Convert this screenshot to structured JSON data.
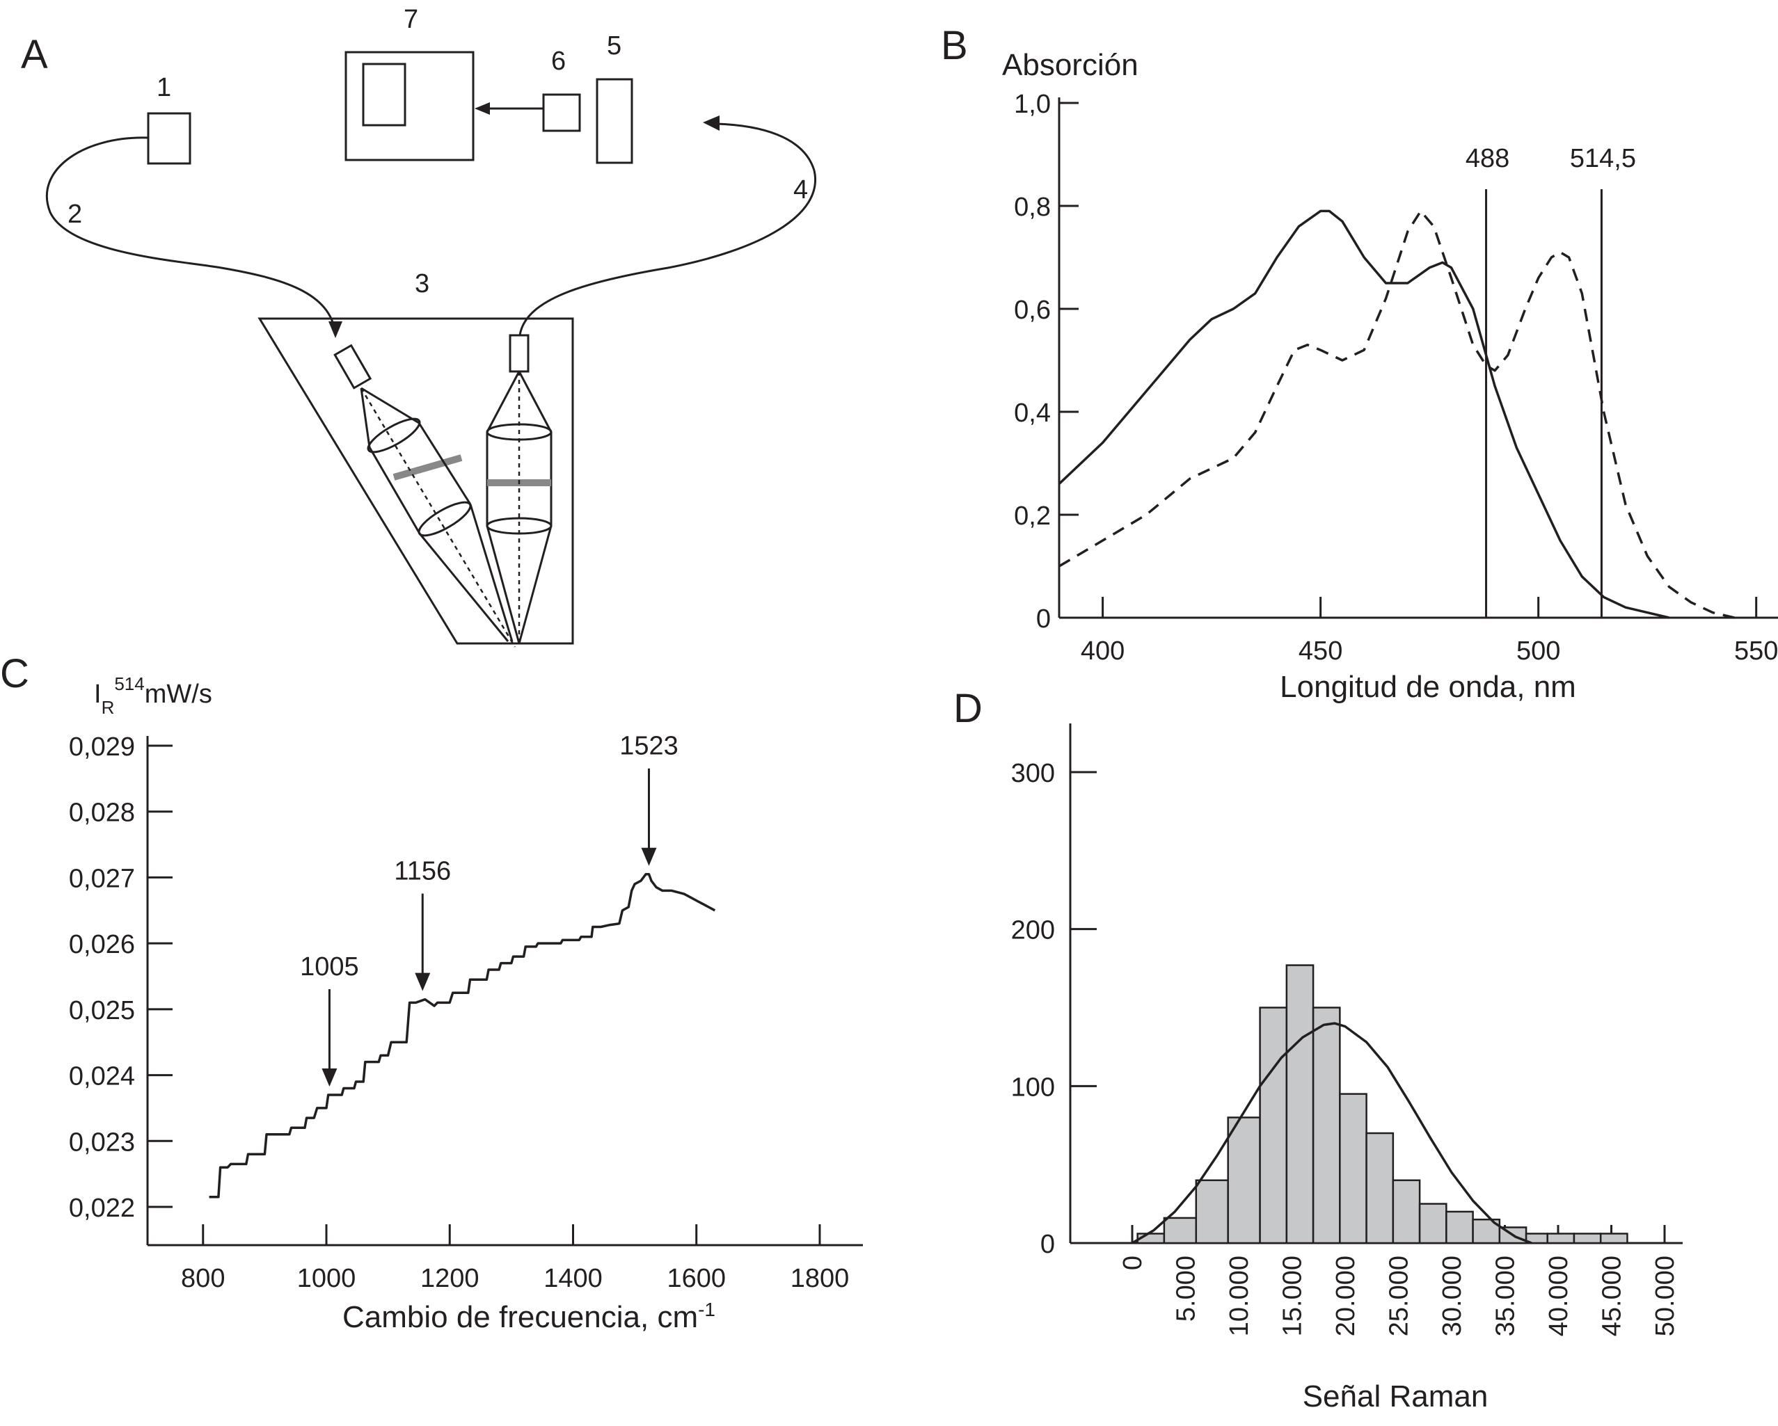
{
  "panels": {
    "A": {
      "letter": "A",
      "component_labels": [
        "1",
        "2",
        "3",
        "4",
        "5",
        "6",
        "7"
      ]
    },
    "B": {
      "letter": "B"
    },
    "C": {
      "letter": "C"
    },
    "D": {
      "letter": "D"
    }
  },
  "chart_data": [
    {
      "panel": "B",
      "type": "line",
      "ylabel": "Absorción",
      "xlabel": "Longitud de onda, nm",
      "xlim": [
        390,
        555
      ],
      "ylim": [
        0,
        1.0
      ],
      "x_ticks": [
        400,
        450,
        500,
        550
      ],
      "y_ticks": [
        0,
        0.2,
        0.4,
        0.6,
        0.8,
        1.0
      ],
      "x_tick_labels": [
        "400",
        "450",
        "500",
        "550"
      ],
      "y_tick_labels": [
        "0",
        "0,2",
        "0,4",
        "0,6",
        "0,8",
        "1,0"
      ],
      "grid": false,
      "series": [
        {
          "style": "solid",
          "x": [
            390,
            400,
            410,
            420,
            425,
            430,
            435,
            440,
            445,
            450,
            452,
            455,
            460,
            465,
            470,
            475,
            478,
            480,
            485,
            490,
            495,
            500,
            505,
            510,
            515,
            520,
            525,
            530
          ],
          "y": [
            0.26,
            0.34,
            0.44,
            0.54,
            0.58,
            0.6,
            0.63,
            0.7,
            0.76,
            0.79,
            0.79,
            0.77,
            0.7,
            0.65,
            0.65,
            0.68,
            0.69,
            0.68,
            0.6,
            0.45,
            0.33,
            0.24,
            0.15,
            0.08,
            0.04,
            0.02,
            0.01,
            0.0
          ]
        },
        {
          "style": "dashed",
          "x": [
            390,
            400,
            410,
            420,
            430,
            435,
            440,
            444,
            447,
            450,
            455,
            460,
            465,
            470,
            473,
            476,
            480,
            485,
            488,
            490,
            493,
            497,
            500,
            503,
            505,
            507,
            510,
            515,
            520,
            525,
            530,
            535,
            540,
            545
          ],
          "y": [
            0.1,
            0.15,
            0.2,
            0.27,
            0.31,
            0.36,
            0.45,
            0.52,
            0.53,
            0.52,
            0.5,
            0.52,
            0.62,
            0.75,
            0.79,
            0.76,
            0.66,
            0.53,
            0.49,
            0.48,
            0.51,
            0.6,
            0.66,
            0.7,
            0.71,
            0.7,
            0.63,
            0.4,
            0.22,
            0.12,
            0.06,
            0.03,
            0.01,
            0.0
          ]
        }
      ],
      "vertical_lines": [
        {
          "x": 488,
          "label": "488"
        },
        {
          "x": 514.5,
          "label": "514,5"
        }
      ]
    },
    {
      "panel": "C",
      "type": "line",
      "ylabel_main": "I",
      "ylabel_sub": "R",
      "ylabel_sup": "514",
      "ylabel_unit": "mW/s",
      "xlabel_main": "Cambio de frecuencia, cm",
      "xlabel_sup": "-1",
      "xlim": [
        710,
        1870
      ],
      "ylim": [
        0.0216,
        0.0292
      ],
      "x_ticks": [
        800,
        1000,
        1200,
        1400,
        1600,
        1800
      ],
      "y_ticks": [
        0.022,
        0.023,
        0.024,
        0.025,
        0.026,
        0.027,
        0.028,
        0.029
      ],
      "x_tick_labels": [
        "800",
        "1000",
        "1200",
        "1400",
        "1600",
        "1800"
      ],
      "y_tick_labels": [
        "0,022",
        "0,023",
        "0,024",
        "0,025",
        "0,026",
        "0,027",
        "0,028",
        "0,029"
      ],
      "grid": false,
      "series": [
        {
          "style": "solid",
          "x": [
            810,
            825,
            828,
            840,
            845,
            870,
            873,
            900,
            903,
            940,
            943,
            965,
            968,
            980,
            985,
            1000,
            1003,
            1025,
            1028,
            1045,
            1048,
            1060,
            1063,
            1085,
            1088,
            1100,
            1105,
            1130,
            1135,
            1145,
            1160,
            1175,
            1180,
            1200,
            1205,
            1210,
            1230,
            1233,
            1260,
            1263,
            1280,
            1283,
            1300,
            1303,
            1320,
            1323,
            1340,
            1343,
            1380,
            1383,
            1410,
            1413,
            1430,
            1432,
            1445,
            1460,
            1475,
            1480,
            1490,
            1495,
            1500,
            1510,
            1518,
            1523,
            1527,
            1535,
            1545,
            1560,
            1580,
            1590,
            1600,
            1610,
            1620,
            1630
          ],
          "y": [
            0.02215,
            0.02215,
            0.0226,
            0.0226,
            0.02265,
            0.02265,
            0.0228,
            0.0228,
            0.0231,
            0.0231,
            0.0232,
            0.0232,
            0.02335,
            0.02335,
            0.0235,
            0.0235,
            0.0237,
            0.0237,
            0.0238,
            0.0238,
            0.0239,
            0.0239,
            0.0242,
            0.0242,
            0.0243,
            0.0243,
            0.0245,
            0.0245,
            0.0251,
            0.0251,
            0.02515,
            0.02505,
            0.0251,
            0.0251,
            0.02525,
            0.02525,
            0.02525,
            0.02545,
            0.02545,
            0.0256,
            0.0256,
            0.0257,
            0.0257,
            0.0258,
            0.0258,
            0.02595,
            0.02595,
            0.026,
            0.026,
            0.02605,
            0.02605,
            0.0261,
            0.0261,
            0.02625,
            0.02625,
            0.02628,
            0.0263,
            0.0265,
            0.02655,
            0.0268,
            0.0269,
            0.02695,
            0.02705,
            0.02705,
            0.02695,
            0.02685,
            0.0268,
            0.0268,
            0.02675,
            0.0267,
            0.02665,
            0.0266,
            0.02655,
            0.0265
          ]
        }
      ],
      "annotations": [
        {
          "x": 1005,
          "label": "1005"
        },
        {
          "x": 1156,
          "label": "1156"
        },
        {
          "x": 1523,
          "label": "1523"
        }
      ]
    },
    {
      "panel": "D",
      "type": "bar",
      "xlabel": "Señal Raman",
      "xlim": [
        -2500,
        52000
      ],
      "ylim": [
        0,
        330
      ],
      "x_ticks": [
        0,
        5000,
        10000,
        15000,
        20000,
        25000,
        30000,
        35000,
        40000,
        45000,
        50000
      ],
      "x_tick_labels": [
        "0",
        "5.000",
        "10.000",
        "15.000",
        "20.000",
        "25.000",
        "30.000",
        "35.000",
        "40.000",
        "45.000",
        "50.000"
      ],
      "y_ticks": [
        0,
        100,
        200,
        300
      ],
      "y_tick_labels": [
        "0",
        "100",
        "200",
        "300"
      ],
      "grid": false,
      "bin_edges": [
        500,
        3000,
        6000,
        9000,
        12000,
        14500,
        17000,
        19500,
        22000,
        24500,
        27000,
        29500,
        32000,
        34500,
        37000,
        39000,
        41500,
        44000,
        46500
      ],
      "values": [
        6,
        16,
        40,
        80,
        150,
        177,
        150,
        95,
        70,
        40,
        25,
        20,
        15,
        10,
        6,
        6,
        6,
        6
      ],
      "fit_curve": {
        "x": [
          0,
          2000,
          4000,
          6000,
          8000,
          10000,
          12000,
          14000,
          16000,
          18000,
          19000,
          20000,
          22000,
          24000,
          26000,
          28000,
          30000,
          32000,
          34000,
          36000,
          37500
        ],
        "y": [
          0,
          8,
          20,
          36,
          56,
          78,
          100,
          118,
          131,
          139,
          140,
          138,
          128,
          112,
          90,
          67,
          45,
          27,
          13,
          4,
          0
        ]
      }
    }
  ]
}
